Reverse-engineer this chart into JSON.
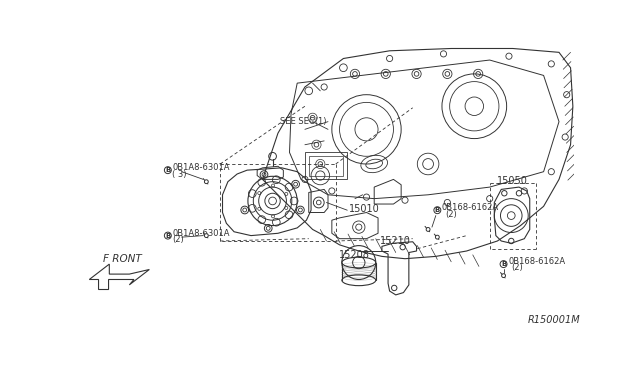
{
  "bg_color": "#ffffff",
  "line_color": "#333333",
  "ref_code": "R150001M",
  "labels": {
    "see_sec": "SEE SEC(1)",
    "front": "F RONT",
    "part_15010": "15010",
    "part_15208": "15208",
    "part_15210": "15210",
    "part_15050": "15050",
    "bolt_b1_name": "0B1A8-6301A",
    "bolt_b1_qty": "( 3)",
    "bolt_b2_name": "0B1A8-6301A",
    "bolt_b2_qty": "(2)",
    "bolt_top_name": "0B168-6162A",
    "bolt_top_qty": "(2)",
    "bolt_bot_name": "0B168-6162A",
    "bolt_bot_qty": "(2)"
  },
  "fs_small": 6.0,
  "fs_label": 7.0,
  "fs_ref": 7.0
}
